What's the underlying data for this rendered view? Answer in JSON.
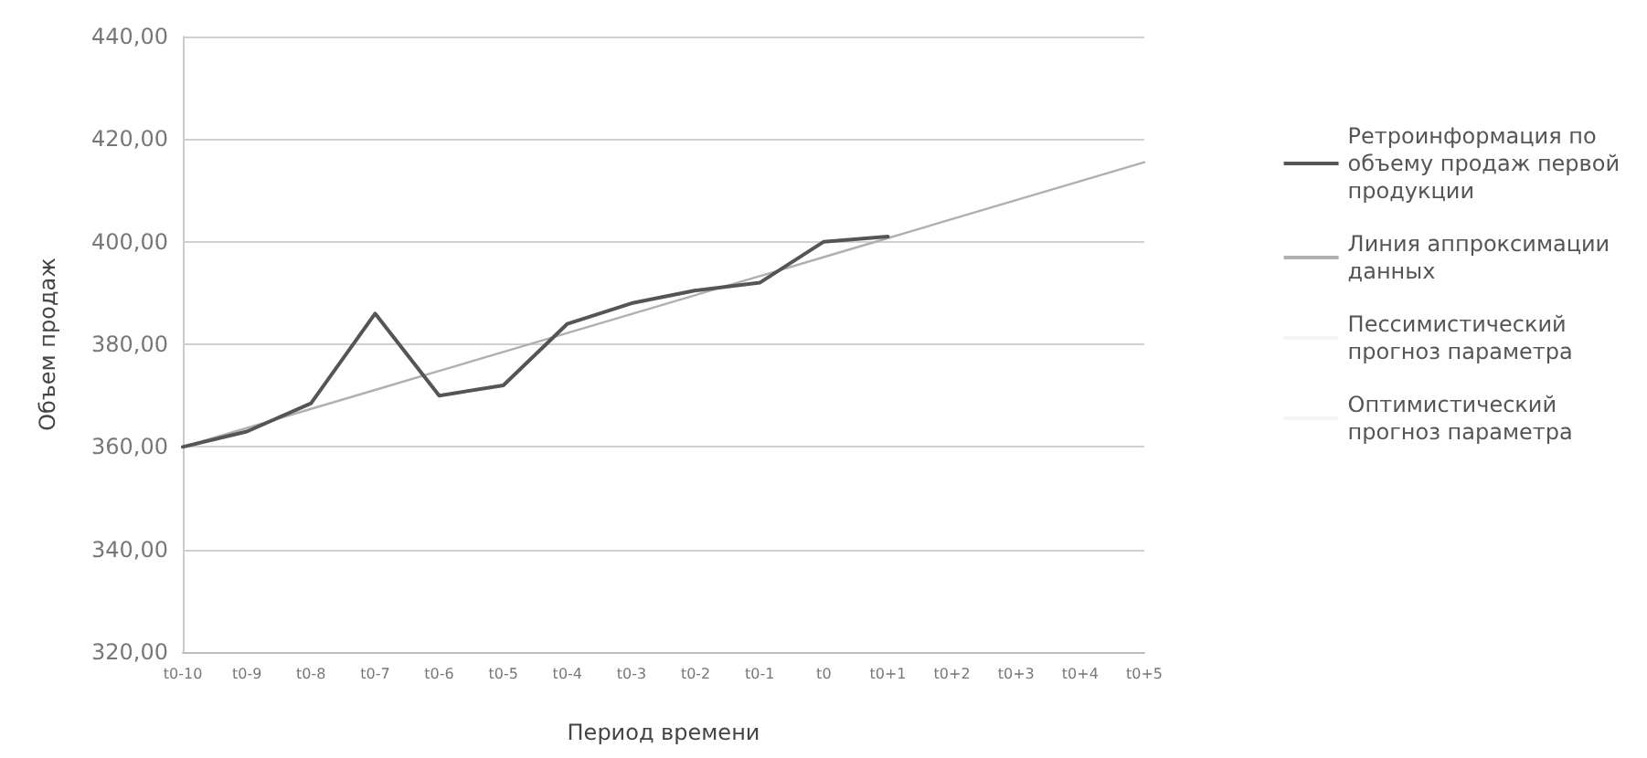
{
  "chart_data": {
    "type": "line",
    "xlabel": "Период времени",
    "ylabel": "Объем продаж",
    "categories": [
      "t0-10",
      "t0-9",
      "t0-8",
      "t0-7",
      "t0-6",
      "t0-5",
      "t0-4",
      "t0-3",
      "t0-2",
      "t0-1",
      "t0",
      "t0+1",
      "t0+2",
      "t0+3",
      "t0+4",
      "t0+5"
    ],
    "series": [
      {
        "name": "Ретроинформация по объему продаж первой продукции",
        "color": "#555555",
        "values": [
          360,
          363,
          368.5,
          386,
          370,
          372,
          384,
          388,
          390.5,
          392,
          400,
          401,
          null,
          null,
          null,
          null
        ]
      },
      {
        "name": "Линия аппроксимации данных",
        "color": "#b0b0b0",
        "values": [
          360,
          363.7,
          367.4,
          371.1,
          374.8,
          378.5,
          382.2,
          385.9,
          389.6,
          393.3,
          397,
          400.7,
          404.4,
          408.1,
          411.8,
          415.5
        ]
      },
      {
        "name": "Пессимистический прогноз параметра",
        "color": "#f4f4f4",
        "values": [
          null,
          null,
          null,
          null,
          null,
          null,
          null,
          null,
          null,
          null,
          null,
          null,
          null,
          null,
          null,
          null
        ]
      },
      {
        "name": "Оптимистический прогноз параметра",
        "color": "#f4f4f4",
        "values": [
          null,
          null,
          null,
          null,
          null,
          null,
          null,
          null,
          null,
          null,
          null,
          null,
          null,
          null,
          null,
          null
        ]
      }
    ],
    "ylim": [
      320,
      440
    ],
    "yticks": [
      {
        "value": 320,
        "label": "320,00"
      },
      {
        "value": 340,
        "label": "340,00"
      },
      {
        "value": 360,
        "label": "360,00"
      },
      {
        "value": 380,
        "label": "380,00"
      },
      {
        "value": 400,
        "label": "400,00"
      },
      {
        "value": 420,
        "label": "420,00"
      },
      {
        "value": 440,
        "label": "440,00"
      }
    ],
    "grid": "y",
    "legend": "right",
    "marker": "none",
    "line_style": "solid"
  }
}
